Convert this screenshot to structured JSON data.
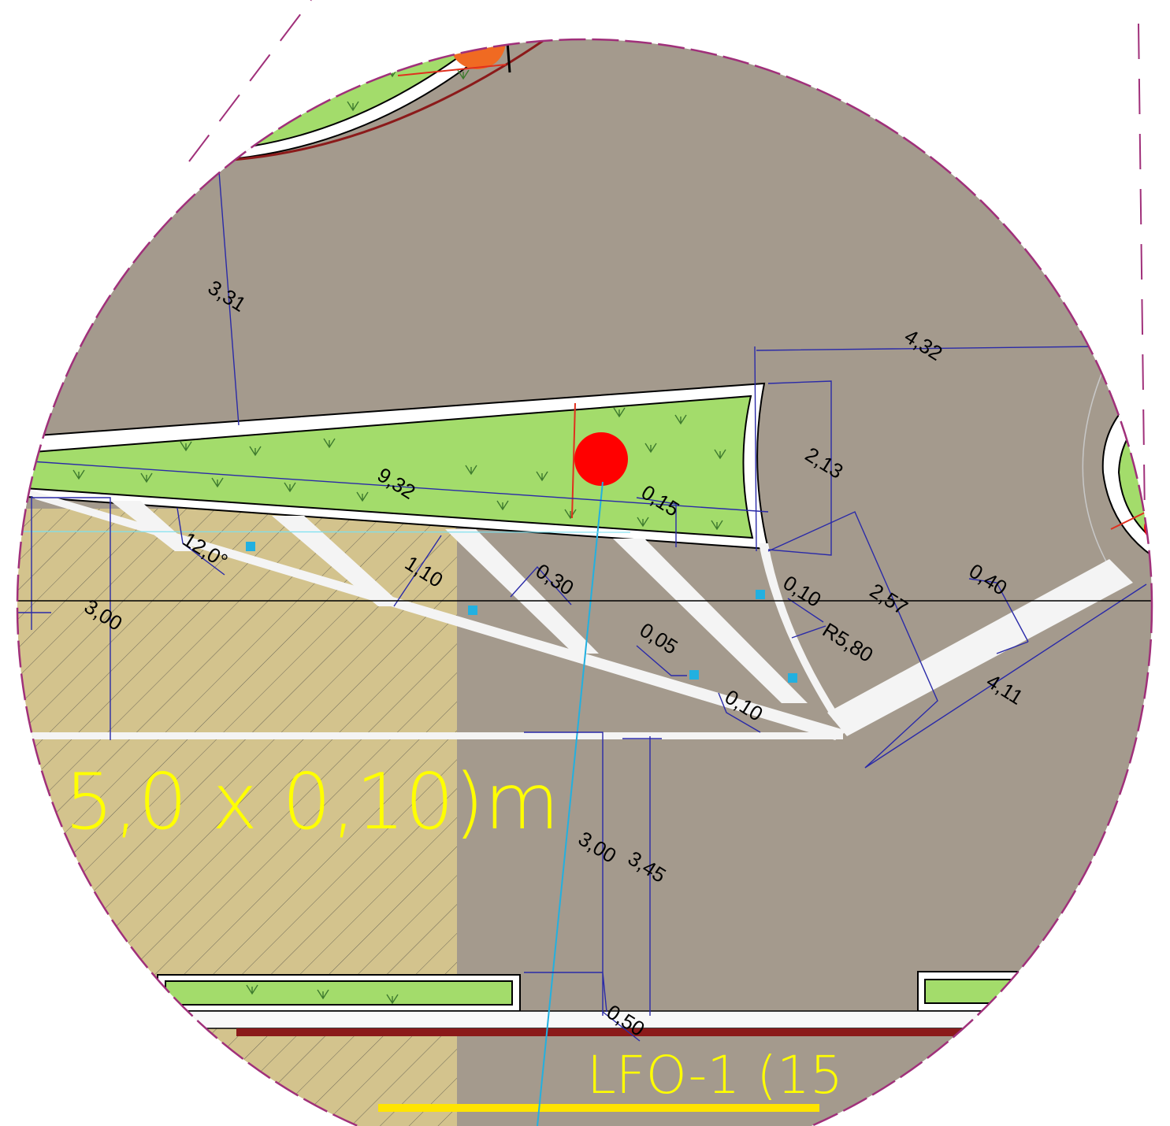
{
  "colors": {
    "asphalt": "#a49a8d",
    "grass": "#a3dc6b",
    "hatch_fill": "#d3c38d",
    "curb": "#ffffff",
    "dimension_line": "#2a2aa8",
    "boundary": "#a0307a",
    "annotation_yellow": "#ffff00",
    "marking_white": "#f4f4f4",
    "tree_red": "#ff0000",
    "tree_orange": "#f06a22",
    "pipe_cyan": "#22b0e0",
    "curb_dark_red": "#8b1a1a"
  },
  "dimensions": {
    "d_331": "3,31",
    "d_432": "4,32",
    "d_213": "2,13",
    "d_932": "9,32",
    "d_015": "0,15",
    "d_120deg": "12,0°",
    "d_110": "1,10",
    "d_030": "0,30",
    "d_300_left": "3,00",
    "d_010_a": "0,10",
    "d_257": "2,57",
    "d_040": "0,40",
    "d_r580": "R5,80",
    "d_005": "0,05",
    "d_010_b": "0,10",
    "d_411": "4,11",
    "d_300_mid": "3,00",
    "d_345": "3,45",
    "d_050": "0,50"
  },
  "labels": {
    "big_partial": "5,0 x 0,10)m",
    "lfo_partial": "LFO-1 (15"
  },
  "icons": {
    "grass_symbol": "grass-tuft-icon",
    "tree": "tree-circle-icon",
    "drain": "drain-square-icon"
  }
}
